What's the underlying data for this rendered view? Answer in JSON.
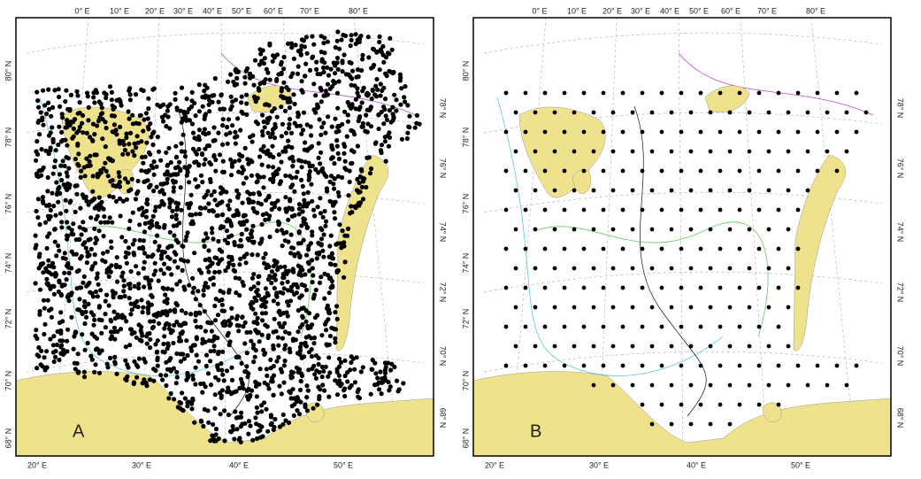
{
  "panels": [
    {
      "label": "A",
      "top_lon": [
        "0° E",
        "10° E",
        "20° E",
        "30° E",
        "40° E",
        "50° E",
        "60° E",
        "70° E",
        "80° E"
      ],
      "bottom_lon": [
        "20° E",
        "30° E",
        "40° E",
        "50° E"
      ],
      "left_lat": [
        "80° N",
        "78° N",
        "76° N",
        "74° N",
        "72° N",
        "70° N",
        "68° N"
      ],
      "right_lat": [
        "78° N",
        "76° N",
        "74° N",
        "72° N",
        "70° N",
        "68° N"
      ]
    },
    {
      "label": "B",
      "top_lon": [
        "0° E",
        "10° E",
        "20° E",
        "30° E",
        "40° E",
        "50° E",
        "60° E",
        "70° E",
        "80° E"
      ],
      "bottom_lon": [
        "20° E",
        "30° E",
        "40° E",
        "50° E"
      ],
      "left_lat": [
        "80° N",
        "78° N",
        "76° N",
        "74° N",
        "72° N",
        "70° N",
        "68° N"
      ],
      "right_lat": [
        "78° N",
        "76° N",
        "74° N",
        "72° N",
        "70° N",
        "68° N"
      ]
    }
  ]
}
